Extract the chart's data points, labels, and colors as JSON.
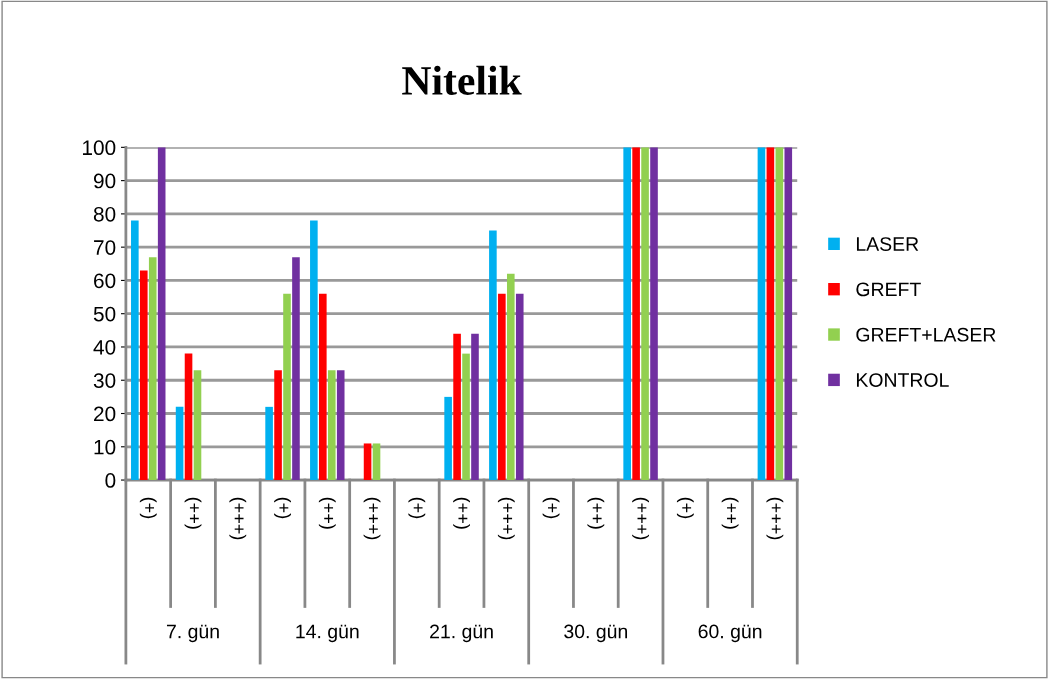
{
  "chart_data": {
    "type": "bar",
    "title": "Nitelik",
    "categories": [
      "(+)",
      "(++)",
      "(+++)",
      "(+)",
      "(++)",
      "(+++)",
      "(+)",
      "(++)",
      "(+++)",
      "(+)",
      "(++)",
      "(+++)",
      "(+)",
      "(++)",
      "(+++)"
    ],
    "series": [
      {
        "name": "LASER",
        "color": "#00b0f0",
        "values": [
          78,
          22,
          0,
          22,
          78,
          0,
          0,
          25,
          75,
          0,
          0,
          100,
          0,
          0,
          100
        ]
      },
      {
        "name": "GREFT",
        "color": "#ff0000",
        "values": [
          63,
          38,
          0,
          33,
          56,
          11,
          0,
          44,
          56,
          0,
          0,
          100,
          0,
          0,
          100
        ]
      },
      {
        "name": "GREFT+LASER",
        "color": "#92d050",
        "values": [
          67,
          33,
          0,
          56,
          33,
          11,
          0,
          38,
          62,
          0,
          0,
          100,
          0,
          0,
          100
        ]
      },
      {
        "name": "KONTROL",
        "color": "#7030a0",
        "values": [
          100,
          0,
          0,
          67,
          33,
          0,
          0,
          44,
          56,
          0,
          0,
          100,
          0,
          0,
          100
        ]
      }
    ],
    "annotations": [
      "7. gün",
      "14. gün",
      "21. gün",
      "30. gün",
      "60. gün"
    ],
    "ylim": [
      0,
      100
    ],
    "yticks": [
      0,
      10,
      20,
      30,
      40,
      50,
      60,
      70,
      80,
      90,
      100
    ],
    "grid": "y",
    "legend": "right"
  }
}
